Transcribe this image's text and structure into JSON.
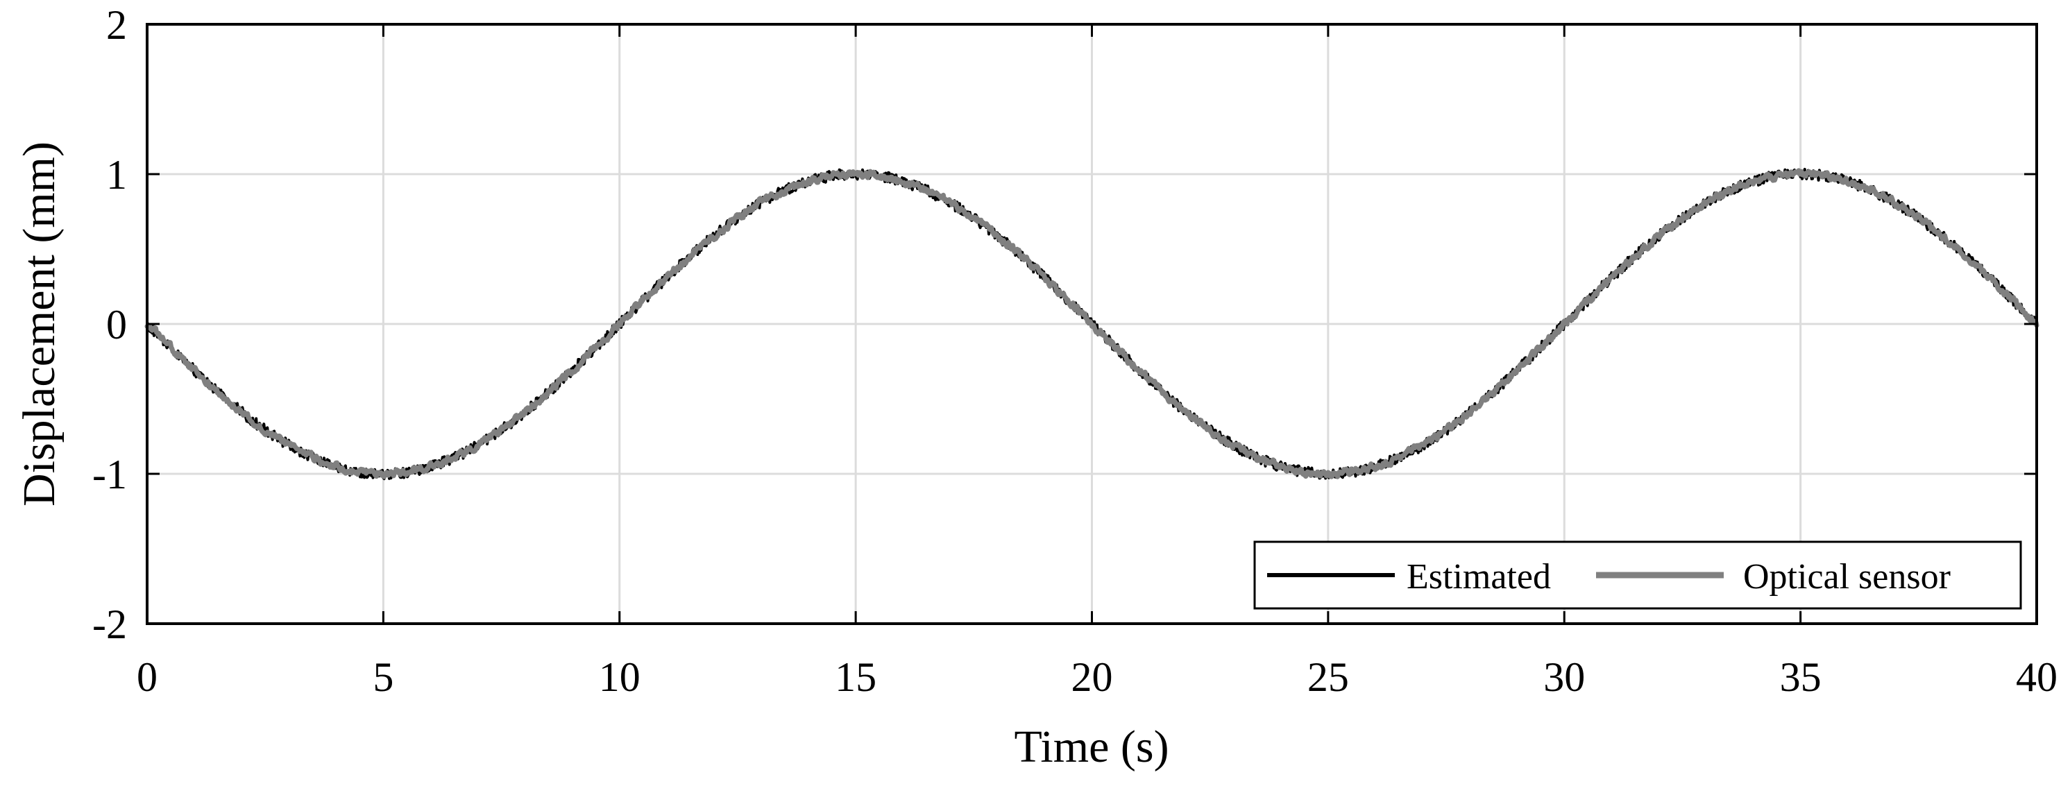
{
  "chart_data": {
    "type": "line",
    "title": "",
    "xlabel": "Time (s)",
    "ylabel": "Displacement (mm)",
    "xlim": [
      0,
      40
    ],
    "ylim": [
      -2,
      2
    ],
    "xticks": [
      0,
      5,
      10,
      15,
      20,
      25,
      30,
      35,
      40
    ],
    "yticks": [
      -2,
      -1,
      0,
      1,
      2
    ],
    "xtick_labels": [
      "0",
      "5",
      "10",
      "15",
      "20",
      "25",
      "30",
      "35",
      "40"
    ],
    "ytick_labels": [
      "-2",
      "-1",
      "0",
      "1",
      "2"
    ],
    "grid": true,
    "legend_position": "bottom-right",
    "series": [
      {
        "name": "Estimated",
        "color": "#000000",
        "description": "y = -sin(2*pi*t/20) with small high-frequency noise",
        "amplitude": 1.0,
        "period": 20,
        "noise": 0.035,
        "x": [
          0,
          1,
          2,
          3,
          4,
          5,
          6,
          7,
          8,
          9,
          10,
          11,
          12,
          13,
          14,
          15,
          16,
          17,
          18,
          19,
          20,
          21,
          22,
          23,
          24,
          25,
          26,
          27,
          28,
          29,
          30,
          31,
          32,
          33,
          34,
          35,
          36,
          37,
          38,
          39,
          40
        ],
        "y": [
          0,
          -0.31,
          -0.59,
          -0.81,
          -0.95,
          -1.0,
          -0.95,
          -0.81,
          -0.59,
          -0.31,
          0,
          0.31,
          0.59,
          0.81,
          0.95,
          1.0,
          0.95,
          0.81,
          0.59,
          0.31,
          0,
          -0.31,
          -0.59,
          -0.81,
          -0.95,
          -1.0,
          -0.95,
          -0.81,
          -0.59,
          -0.31,
          0,
          0.31,
          0.59,
          0.81,
          0.95,
          1.0,
          0.95,
          0.81,
          0.59,
          0.31,
          0
        ]
      },
      {
        "name": "Optical sensor",
        "color": "#808080",
        "description": "y = -sin(2*pi*t/20) with small high-frequency noise",
        "amplitude": 1.0,
        "period": 20,
        "noise": 0.025,
        "x": [
          0,
          1,
          2,
          3,
          4,
          5,
          6,
          7,
          8,
          9,
          10,
          11,
          12,
          13,
          14,
          15,
          16,
          17,
          18,
          19,
          20,
          21,
          22,
          23,
          24,
          25,
          26,
          27,
          28,
          29,
          30,
          31,
          32,
          33,
          34,
          35,
          36,
          37,
          38,
          39,
          40
        ],
        "y": [
          0,
          -0.31,
          -0.59,
          -0.81,
          -0.95,
          -1.0,
          -0.95,
          -0.81,
          -0.59,
          -0.31,
          0,
          0.31,
          0.59,
          0.81,
          0.95,
          1.0,
          0.95,
          0.81,
          0.59,
          0.31,
          0,
          -0.31,
          -0.59,
          -0.81,
          -0.95,
          -1.0,
          -0.95,
          -0.81,
          -0.59,
          -0.31,
          0,
          0.31,
          0.59,
          0.81,
          0.95,
          1.0,
          0.95,
          0.81,
          0.59,
          0.31,
          0
        ]
      }
    ]
  }
}
